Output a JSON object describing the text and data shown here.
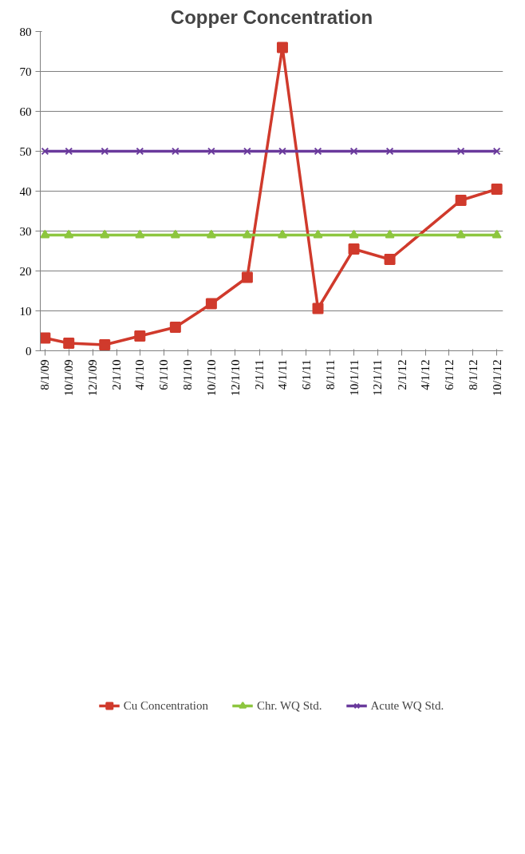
{
  "chart_data": {
    "type": "line",
    "title": "Copper Concentration",
    "x": [
      "2009-08-01",
      "2009-10-01",
      "2010-01-01",
      "2010-04-01",
      "2010-07-01",
      "2010-10-01",
      "2011-01-01",
      "2011-04-01",
      "2011-07-01",
      "2011-10-01",
      "2012-01-01",
      "2012-07-01",
      "2012-10-01"
    ],
    "xlim": [
      "2009-07-20",
      "2012-10-17"
    ],
    "xticks": [
      {
        "value": "2009-08-01",
        "label": "8/1/09"
      },
      {
        "value": "2009-10-01",
        "label": "10/1/09"
      },
      {
        "value": "2009-12-01",
        "label": "12/1/09"
      },
      {
        "value": "2010-02-01",
        "label": "2/1/10"
      },
      {
        "value": "2010-04-01",
        "label": "4/1/10"
      },
      {
        "value": "2010-06-01",
        "label": "6/1/10"
      },
      {
        "value": "2010-08-01",
        "label": "8/1/10"
      },
      {
        "value": "2010-10-01",
        "label": "10/1/10"
      },
      {
        "value": "2010-12-01",
        "label": "12/1/10"
      },
      {
        "value": "2011-02-01",
        "label": "2/1/11"
      },
      {
        "value": "2011-04-01",
        "label": "4/1/11"
      },
      {
        "value": "2011-06-01",
        "label": "6/1/11"
      },
      {
        "value": "2011-08-01",
        "label": "8/1/11"
      },
      {
        "value": "2011-10-01",
        "label": "10/1/11"
      },
      {
        "value": "2011-12-01",
        "label": "12/1/11"
      },
      {
        "value": "2012-02-01",
        "label": "2/1/12"
      },
      {
        "value": "2012-04-01",
        "label": "4/1/12"
      },
      {
        "value": "2012-06-01",
        "label": "6/1/12"
      },
      {
        "value": "2012-08-01",
        "label": "8/1/12"
      },
      {
        "value": "2012-10-01",
        "label": "10/1/12"
      }
    ],
    "ylim": [
      0,
      80
    ],
    "yticks": [
      0,
      10,
      20,
      30,
      40,
      50,
      60,
      70,
      80
    ],
    "grid": "y",
    "legend": "bottom",
    "series": [
      {
        "name": "Cu Concentration",
        "color": "#d03a2c",
        "marker": "square",
        "values": [
          3.2,
          1.9,
          1.5,
          3.7,
          5.9,
          11.8,
          18.4,
          76,
          10.6,
          25.5,
          22.9,
          37.7,
          40.5
        ]
      },
      {
        "name": "Chr. WQ Std.",
        "color": "#8dc63f",
        "marker": "triangle",
        "values": [
          29,
          29,
          29,
          29,
          29,
          29,
          29,
          29,
          29,
          29,
          29,
          29,
          29
        ]
      },
      {
        "name": "Acute WQ Std.",
        "color": "#6a3a9c",
        "marker": "x",
        "values": [
          50,
          50,
          50,
          50,
          50,
          50,
          50,
          50,
          50,
          50,
          50,
          50,
          50
        ]
      }
    ]
  }
}
